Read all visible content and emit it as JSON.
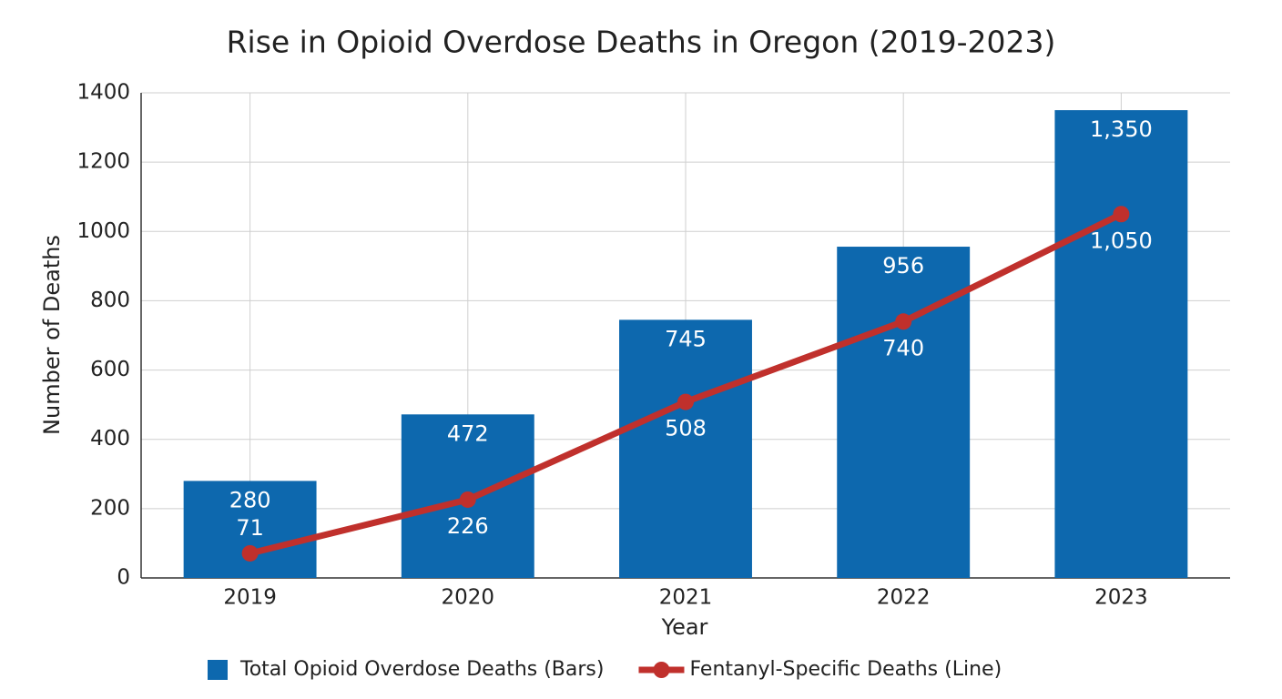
{
  "chart_data": {
    "type": "combo",
    "title": "Rise in Opioid Overdose Deaths in Oregon (2019-2023)",
    "x_label": "Year",
    "y_label": "Number of Deaths",
    "categories": [
      "2019",
      "2020",
      "2021",
      "2022",
      "2023"
    ],
    "series": [
      {
        "name": "Total Opioid Overdose Deaths (Bars)",
        "type": "bar",
        "color": "#0d68ae",
        "values": [
          280,
          472,
          745,
          956,
          1350
        ],
        "value_labels": [
          "280",
          "472",
          "745",
          "956",
          "1,350"
        ]
      },
      {
        "name": "Fentanyl-Specific Deaths (Line)",
        "type": "line",
        "color": "#c0302c",
        "values": [
          71,
          226,
          508,
          740,
          1050
        ],
        "value_labels": [
          "71",
          "226",
          "508",
          "740",
          "1,050"
        ]
      }
    ],
    "ylim": [
      0,
      1400
    ],
    "yticks": [
      0,
      200,
      400,
      600,
      800,
      1000,
      1200,
      1400
    ],
    "grid": true,
    "legend": "bottom"
  }
}
